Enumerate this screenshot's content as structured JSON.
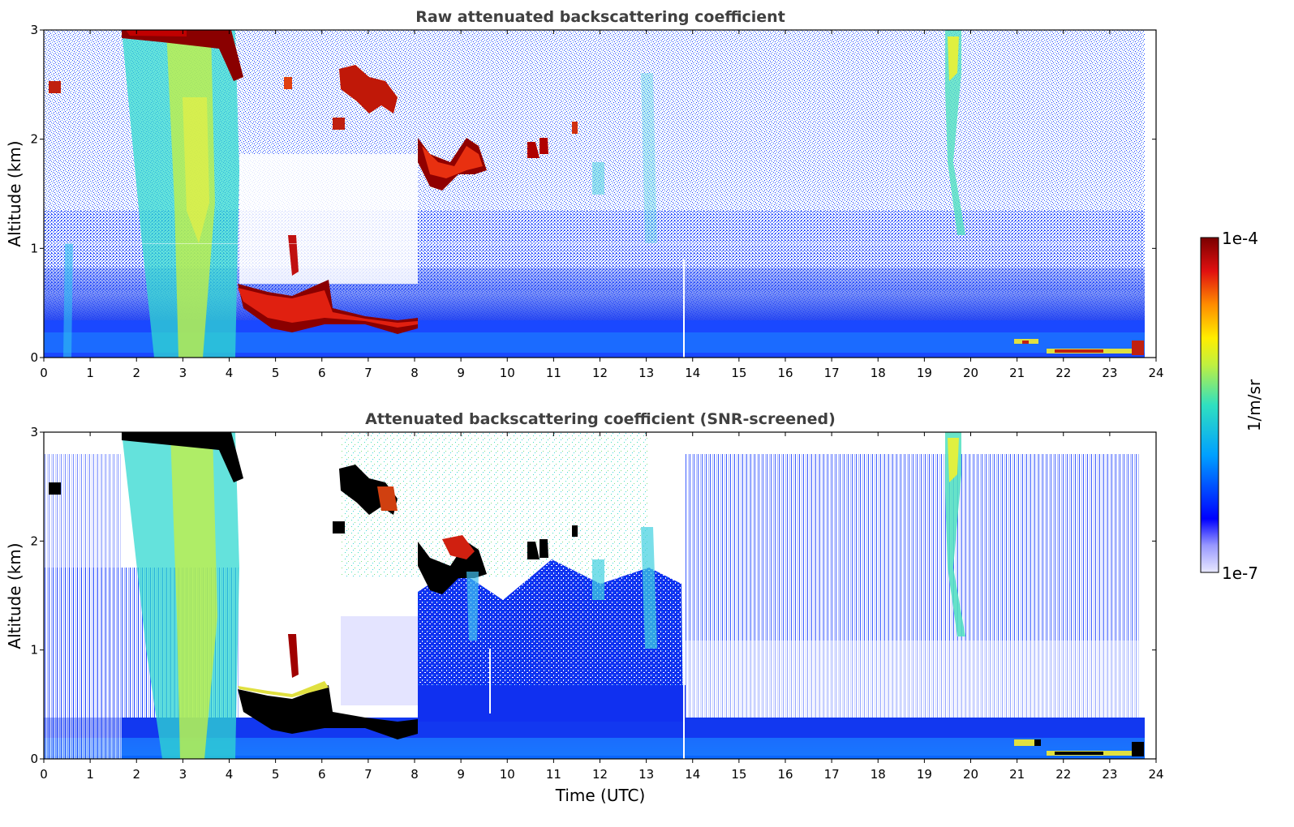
{
  "chart_data": [
    {
      "type": "heatmap",
      "title": "Raw attenuated backscattering coefficient",
      "xlabel": "",
      "ylabel": "Altitude (km)",
      "xlim": [
        0,
        24
      ],
      "ylim": [
        0,
        3
      ],
      "x_ticks": [
        "0",
        "1",
        "2",
        "3",
        "4",
        "5",
        "6",
        "7",
        "8",
        "9",
        "10",
        "11",
        "12",
        "13",
        "14",
        "15",
        "16",
        "17",
        "18",
        "19",
        "20",
        "21",
        "22",
        "23",
        "24"
      ],
      "y_ticks": [
        "0",
        "1",
        "2",
        "3"
      ],
      "layers": [
        {
          "name": "aerosol boundary layer",
          "x_start": 0,
          "x_end": 23.7,
          "top_km": 0.5
        },
        {
          "name": "low cloud",
          "x_start": 4.2,
          "x_end": 8.0,
          "top_km": 0.6
        },
        {
          "name": "mid-level cloud",
          "x_start": 8.0,
          "x_end": 9.5,
          "top_km": 2.0
        },
        {
          "name": "precipitation streaks",
          "x_start": 2.0,
          "x_end": 4.2,
          "top_km": 3.0
        },
        {
          "name": "virga",
          "x_start": 19.4,
          "x_end": 19.8,
          "top_km": 3.0
        }
      ]
    },
    {
      "type": "heatmap",
      "title": "Attenuated backscattering coefficient (SNR-screened)",
      "xlabel": "Time (UTC)",
      "ylabel": "Altitude (km)",
      "xlim": [
        0,
        24
      ],
      "ylim": [
        0,
        3
      ],
      "x_ticks": [
        "0",
        "1",
        "2",
        "3",
        "4",
        "5",
        "6",
        "7",
        "8",
        "9",
        "10",
        "11",
        "12",
        "13",
        "14",
        "15",
        "16",
        "17",
        "18",
        "19",
        "20",
        "21",
        "22",
        "23",
        "24"
      ],
      "y_ticks": [
        "0",
        "1",
        "2",
        "3"
      ],
      "layers": [
        {
          "name": "aerosol boundary layer",
          "x_start": 0,
          "x_end": 23.7,
          "top_km": 0.35
        },
        {
          "name": "low cloud",
          "x_start": 4.2,
          "x_end": 8.0,
          "top_km": 0.6
        },
        {
          "name": "mid-level cloud",
          "x_start": 8.0,
          "x_end": 9.5,
          "top_km": 2.0
        },
        {
          "name": "precipitation streaks",
          "x_start": 2.0,
          "x_end": 4.2,
          "top_km": 3.0
        },
        {
          "name": "virga",
          "x_start": 19.4,
          "x_end": 19.8,
          "top_km": 3.0
        }
      ]
    }
  ],
  "colorbar": {
    "label": "1/m/sr",
    "min_label": "1e-7",
    "max_label": "1e-4",
    "colors": [
      "#e8e8ff",
      "#0000ff",
      "#00bfff",
      "#3fe0b0",
      "#e8f040",
      "#ffa000",
      "#d01010",
      "#800000"
    ]
  }
}
